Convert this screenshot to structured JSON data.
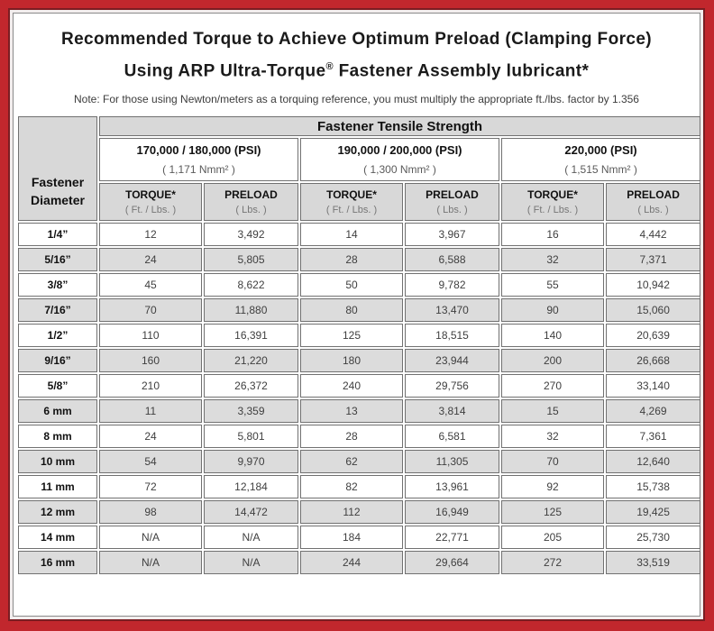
{
  "title": {
    "line1": "Recommended Torque to Achieve Optimum Preload (Clamping Force)",
    "line2_pre": "Using ARP Ultra-Torque",
    "line2_reg": "®",
    "line2_post": " Fastener Assembly lubricant*"
  },
  "note": "Note: For those using Newton/meters as a torquing reference, you must multiply the appropriate ft./lbs. factor by 1.356",
  "colors": {
    "frame_red": "#c1272d",
    "inner_line_maroon": "#7a1d22",
    "header_gray": "#d8d8d8",
    "alt_row_gray": "#dcdcdc",
    "cell_border_gray": "#717171"
  },
  "table": {
    "corner_label_line1": "Fastener",
    "corner_label_line2": "Diameter",
    "tensile_header": "Fastener Tensile Strength",
    "groups": [
      {
        "psi": "170,000 / 180,000 (PSI)",
        "nmm": "( 1,171 Nmm² )"
      },
      {
        "psi": "190,000 / 200,000 (PSI)",
        "nmm": "( 1,300 Nmm² )"
      },
      {
        "psi": "220,000 (PSI)",
        "nmm": "( 1,515 Nmm² )"
      }
    ],
    "col_headers": {
      "torque_label": "TORQUE*",
      "torque_sub": "( Ft. / Lbs. )",
      "preload_label": "PRELOAD",
      "preload_sub": "( Lbs. )"
    },
    "rows": [
      {
        "d": "1/4”",
        "t1": "12",
        "p1": "3,492",
        "t2": "14",
        "p2": "3,967",
        "t3": "16",
        "p3": "4,442"
      },
      {
        "d": "5/16”",
        "t1": "24",
        "p1": "5,805",
        "t2": "28",
        "p2": "6,588",
        "t3": "32",
        "p3": "7,371"
      },
      {
        "d": "3/8”",
        "t1": "45",
        "p1": "8,622",
        "t2": "50",
        "p2": "9,782",
        "t3": "55",
        "p3": "10,942"
      },
      {
        "d": "7/16”",
        "t1": "70",
        "p1": "11,880",
        "t2": "80",
        "p2": "13,470",
        "t3": "90",
        "p3": "15,060"
      },
      {
        "d": "1/2”",
        "t1": "110",
        "p1": "16,391",
        "t2": "125",
        "p2": "18,515",
        "t3": "140",
        "p3": "20,639"
      },
      {
        "d": "9/16”",
        "t1": "160",
        "p1": "21,220",
        "t2": "180",
        "p2": "23,944",
        "t3": "200",
        "p3": "26,668"
      },
      {
        "d": "5/8”",
        "t1": "210",
        "p1": "26,372",
        "t2": "240",
        "p2": "29,756",
        "t3": "270",
        "p3": "33,140"
      },
      {
        "d": "6 mm",
        "t1": "11",
        "p1": "3,359",
        "t2": "13",
        "p2": "3,814",
        "t3": "15",
        "p3": "4,269"
      },
      {
        "d": "8 mm",
        "t1": "24",
        "p1": "5,801",
        "t2": "28",
        "p2": "6,581",
        "t3": "32",
        "p3": "7,361"
      },
      {
        "d": "10 mm",
        "t1": "54",
        "p1": "9,970",
        "t2": "62",
        "p2": "11,305",
        "t3": "70",
        "p3": "12,640"
      },
      {
        "d": "11 mm",
        "t1": "72",
        "p1": "12,184",
        "t2": "82",
        "p2": "13,961",
        "t3": "92",
        "p3": "15,738"
      },
      {
        "d": "12 mm",
        "t1": "98",
        "p1": "14,472",
        "t2": "112",
        "p2": "16,949",
        "t3": "125",
        "p3": "19,425"
      },
      {
        "d": "14 mm",
        "t1": "N/A",
        "p1": "N/A",
        "t2": "184",
        "p2": "22,771",
        "t3": "205",
        "p3": "25,730"
      },
      {
        "d": "16 mm",
        "t1": "N/A",
        "p1": "N/A",
        "t2": "244",
        "p2": "29,664",
        "t3": "272",
        "p3": "33,519"
      }
    ]
  }
}
